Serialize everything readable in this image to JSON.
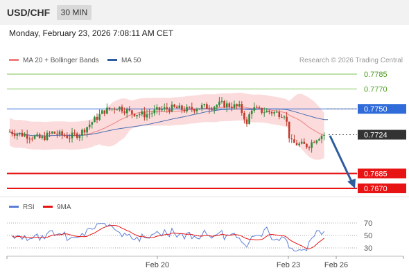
{
  "header": {
    "symbol": "USD/CHF",
    "timeframe": "30 MIN"
  },
  "timestamp": "Monday, February 23, 2026 7:08:11 AM CET",
  "legend": {
    "ma20": {
      "label": "MA 20 + Bollinger Bands",
      "color": "#f08080"
    },
    "ma50": {
      "label": "MA 50",
      "color": "#2e5c9e"
    },
    "credit": "Research © 2026 Trading Central"
  },
  "colors": {
    "up": "#2e8b3a",
    "down": "#c0392b",
    "band_fill": "#fbd7d7",
    "ma20": "#f08080",
    "ma50": "#4a6fb5",
    "resistance": "#7cc24f",
    "pivot": "#3a6fd8",
    "support": "#e81414",
    "current": "#333333",
    "arrow": "#2e5c9e",
    "rsi": "#5b7fd8",
    "rsi_ma": "#e81414"
  },
  "chart_data": [
    {
      "type": "candlestick",
      "ylim": [
        0.7662,
        0.7793
      ],
      "levels": [
        {
          "label": "0.7785",
          "value": 0.7785,
          "kind": "resistance"
        },
        {
          "label": "0.7770",
          "value": 0.777,
          "kind": "resistance"
        },
        {
          "label": "0.7750",
          "value": 0.775,
          "kind": "pivot"
        },
        {
          "label": "0.7724",
          "value": 0.7724,
          "kind": "current"
        },
        {
          "label": "0.7685",
          "value": 0.7685,
          "kind": "support"
        },
        {
          "label": "0.7670",
          "value": 0.767,
          "kind": "support"
        }
      ],
      "x_ticks": [
        "Feb 20",
        "Feb 23",
        "Feb 26"
      ],
      "key_points": [
        {
          "where": "start",
          "close": 0.7727
        },
        {
          "where": "mid-session high",
          "close": 0.7757
        },
        {
          "where": "pre-weekend",
          "close": 0.775
        },
        {
          "where": "Feb 23 low",
          "close": 0.7713
        },
        {
          "where": "last",
          "close": 0.7724
        }
      ]
    },
    {
      "type": "line",
      "title": "RSI",
      "series": [
        {
          "name": "RSI"
        },
        {
          "name": "9MA"
        }
      ],
      "y_ticks": [
        70,
        50,
        30
      ],
      "ylim": [
        20,
        80
      ]
    }
  ]
}
